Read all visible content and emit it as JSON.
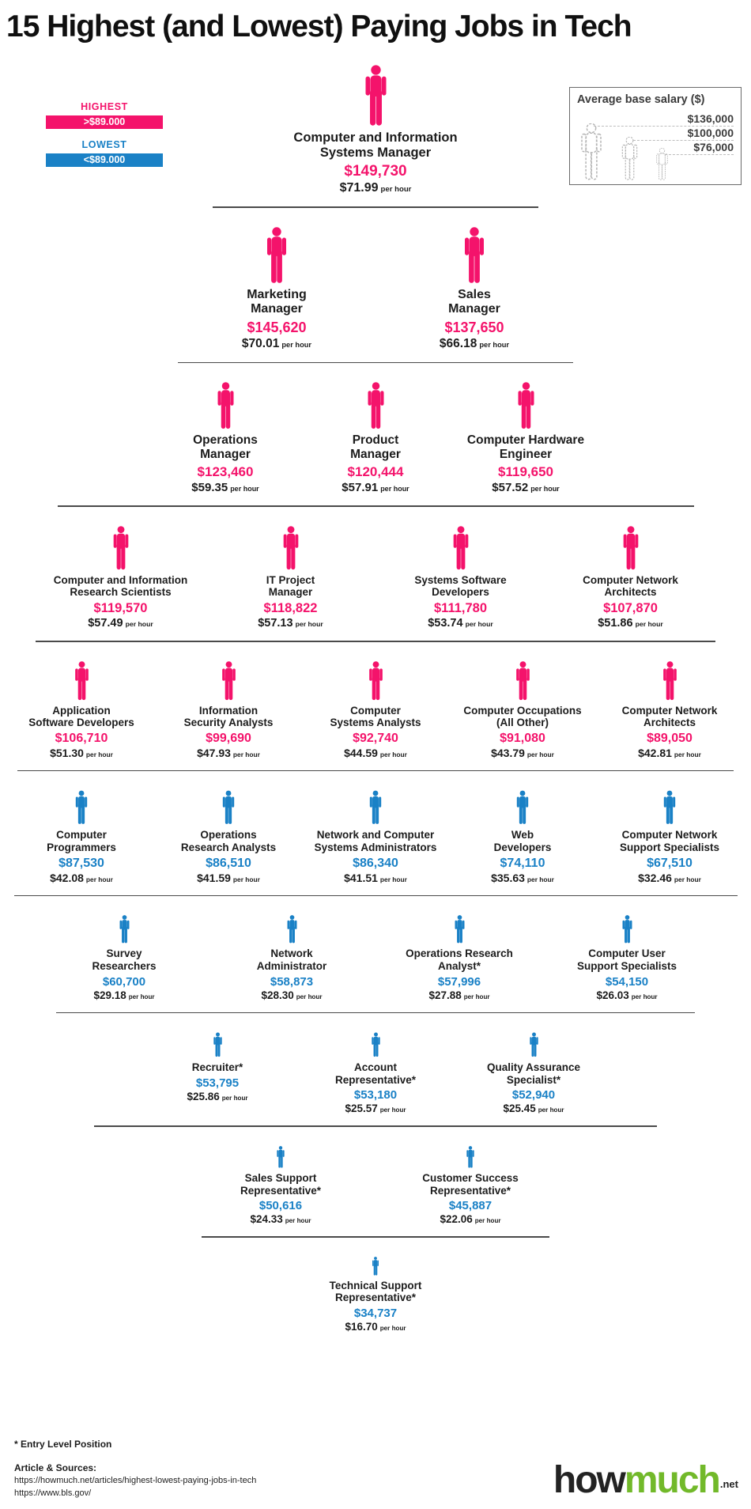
{
  "title": "15 Highest (and Lowest) Paying Jobs in Tech",
  "colors": {
    "highest": "#f4136b",
    "lowest": "#1a81c6",
    "logo_green": "#72b92a"
  },
  "labels": {
    "per_hour": "per hour"
  },
  "legend": {
    "highest_label": "HIGHEST",
    "highest_range": ">$89.000",
    "lowest_label": "LOWEST",
    "lowest_range": "<$89.000"
  },
  "size_key": {
    "title": "Average base salary ($)",
    "values": [
      "$136,000",
      "$100,000",
      "$76,000"
    ]
  },
  "rows": [
    {
      "tier": "highest",
      "jobs": [
        {
          "name": "Computer and Information\nSystems Manager",
          "salary": "$149,730",
          "hourly": "$71.99"
        }
      ]
    },
    {
      "tier": "highest",
      "jobs": [
        {
          "name": "Marketing\nManager",
          "salary": "$145,620",
          "hourly": "$70.01"
        },
        {
          "name": "Sales\nManager",
          "salary": "$137,650",
          "hourly": "$66.18"
        }
      ]
    },
    {
      "tier": "highest",
      "jobs": [
        {
          "name": "Operations\nManager",
          "salary": "$123,460",
          "hourly": "$59.35"
        },
        {
          "name": "Product\nManager",
          "salary": "$120,444",
          "hourly": "$57.91"
        },
        {
          "name": "Computer Hardware\nEngineer",
          "salary": "$119,650",
          "hourly": "$57.52"
        }
      ]
    },
    {
      "tier": "highest",
      "jobs": [
        {
          "name": "Computer and Information\nResearch Scientists",
          "salary": "$119,570",
          "hourly": "$57.49"
        },
        {
          "name": "IT Project\nManager",
          "salary": "$118,822",
          "hourly": "$57.13"
        },
        {
          "name": "Systems Software\nDevelopers",
          "salary": "$111,780",
          "hourly": "$53.74"
        },
        {
          "name": "Computer Network\nArchitects",
          "salary": "$107,870",
          "hourly": "$51.86"
        }
      ]
    },
    {
      "tier": "highest",
      "jobs": [
        {
          "name": "Application\nSoftware Developers",
          "salary": "$106,710",
          "hourly": "$51.30"
        },
        {
          "name": "Information\nSecurity Analysts",
          "salary": "$99,690",
          "hourly": "$47.93"
        },
        {
          "name": "Computer\nSystems Analysts",
          "salary": "$92,740",
          "hourly": "$44.59"
        },
        {
          "name": "Computer Occupations\n(All Other)",
          "salary": "$91,080",
          "hourly": "$43.79"
        },
        {
          "name": "Computer Network\nArchitects",
          "salary": "$89,050",
          "hourly": "$42.81"
        }
      ]
    },
    {
      "tier": "lowest",
      "jobs": [
        {
          "name": "Computer\nProgrammers",
          "salary": "$87,530",
          "hourly": "$42.08"
        },
        {
          "name": "Operations\nResearch Analysts",
          "salary": "$86,510",
          "hourly": "$41.59"
        },
        {
          "name": "Network and Computer\nSystems Administrators",
          "salary": "$86,340",
          "hourly": "$41.51"
        },
        {
          "name": "Web\nDevelopers",
          "salary": "$74,110",
          "hourly": "$35.63"
        },
        {
          "name": "Computer Network\nSupport Specialists",
          "salary": "$67,510",
          "hourly": "$32.46"
        }
      ]
    },
    {
      "tier": "lowest",
      "jobs": [
        {
          "name": "Survey\nResearchers",
          "salary": "$60,700",
          "hourly": "$29.18"
        },
        {
          "name": "Network\nAdministrator",
          "salary": "$58,873",
          "hourly": "$28.30"
        },
        {
          "name": "Operations Research\nAnalyst*",
          "salary": "$57,996",
          "hourly": "$27.88"
        },
        {
          "name": "Computer User\nSupport Specialists",
          "salary": "$54,150",
          "hourly": "$26.03"
        }
      ]
    },
    {
      "tier": "lowest",
      "jobs": [
        {
          "name": "Recruiter*",
          "salary": "$53,795",
          "hourly": "$25.86"
        },
        {
          "name": "Account\nRepresentative*",
          "salary": "$53,180",
          "hourly": "$25.57"
        },
        {
          "name": "Quality Assurance\nSpecialist*",
          "salary": "$52,940",
          "hourly": "$25.45"
        }
      ]
    },
    {
      "tier": "lowest",
      "jobs": [
        {
          "name": "Sales Support\nRepresentative*",
          "salary": "$50,616",
          "hourly": "$24.33"
        },
        {
          "name": "Customer Success\nRepresentative*",
          "salary": "$45,887",
          "hourly": "$22.06"
        }
      ]
    },
    {
      "tier": "lowest",
      "jobs": [
        {
          "name": "Technical Support\nRepresentative*",
          "salary": "$34,737",
          "hourly": "$16.70"
        }
      ]
    }
  ],
  "footer": {
    "footnote": "* Entry Level Position",
    "sources_heading": "Article & Sources:",
    "sources": [
      "https://howmuch.net/articles/highest-lowest-paying-jobs-in-tech",
      "https://www.bls.gov/"
    ]
  },
  "logo": {
    "part1": "how",
    "part2": "much",
    "suffix": ".net"
  },
  "chart_data": {
    "type": "table",
    "title": "15 Highest (and Lowest) Paying Jobs in Tech",
    "legend": [
      {
        "label": "HIGHEST",
        "threshold": ">$89.000",
        "color": "#f4136b"
      },
      {
        "label": "LOWEST",
        "threshold": "<$89.000",
        "color": "#1a81c6"
      }
    ],
    "size_key_values": [
      136000,
      100000,
      76000
    ],
    "columns": [
      "job",
      "annual_salary_usd",
      "hourly_usd",
      "tier"
    ],
    "rows": [
      [
        "Computer and Information Systems Manager",
        149730,
        71.99,
        "highest"
      ],
      [
        "Marketing Manager",
        145620,
        70.01,
        "highest"
      ],
      [
        "Sales Manager",
        137650,
        66.18,
        "highest"
      ],
      [
        "Operations Manager",
        123460,
        59.35,
        "highest"
      ],
      [
        "Product Manager",
        120444,
        57.91,
        "highest"
      ],
      [
        "Computer Hardware Engineer",
        119650,
        57.52,
        "highest"
      ],
      [
        "Computer and Information Research Scientists",
        119570,
        57.49,
        "highest"
      ],
      [
        "IT Project Manager",
        118822,
        57.13,
        "highest"
      ],
      [
        "Systems Software Developers",
        111780,
        53.74,
        "highest"
      ],
      [
        "Computer Network Architects",
        107870,
        51.86,
        "highest"
      ],
      [
        "Application Software Developers",
        106710,
        51.3,
        "highest"
      ],
      [
        "Information Security Analysts",
        99690,
        47.93,
        "highest"
      ],
      [
        "Computer Systems Analysts",
        92740,
        44.59,
        "highest"
      ],
      [
        "Computer Occupations (All Other)",
        91080,
        43.79,
        "highest"
      ],
      [
        "Computer Network Architects",
        89050,
        42.81,
        "highest"
      ],
      [
        "Computer Programmers",
        87530,
        42.08,
        "lowest"
      ],
      [
        "Operations Research Analysts",
        86510,
        41.59,
        "lowest"
      ],
      [
        "Network and Computer Systems Administrators",
        86340,
        41.51,
        "lowest"
      ],
      [
        "Web Developers",
        74110,
        35.63,
        "lowest"
      ],
      [
        "Computer Network Support Specialists",
        67510,
        32.46,
        "lowest"
      ],
      [
        "Survey Researchers",
        60700,
        29.18,
        "lowest"
      ],
      [
        "Network Administrator",
        58873,
        28.3,
        "lowest"
      ],
      [
        "Operations Research Analyst (entry level)",
        57996,
        27.88,
        "lowest"
      ],
      [
        "Computer User Support Specialists",
        54150,
        26.03,
        "lowest"
      ],
      [
        "Recruiter (entry level)",
        53795,
        25.86,
        "lowest"
      ],
      [
        "Account Representative (entry level)",
        53180,
        25.57,
        "lowest"
      ],
      [
        "Quality Assurance Specialist (entry level)",
        52940,
        25.45,
        "lowest"
      ],
      [
        "Sales Support Representative (entry level)",
        50616,
        24.33,
        "lowest"
      ],
      [
        "Customer Success Representative (entry level)",
        45887,
        22.06,
        "lowest"
      ],
      [
        "Technical Support Representative (entry level)",
        34737,
        16.7,
        "lowest"
      ]
    ]
  }
}
